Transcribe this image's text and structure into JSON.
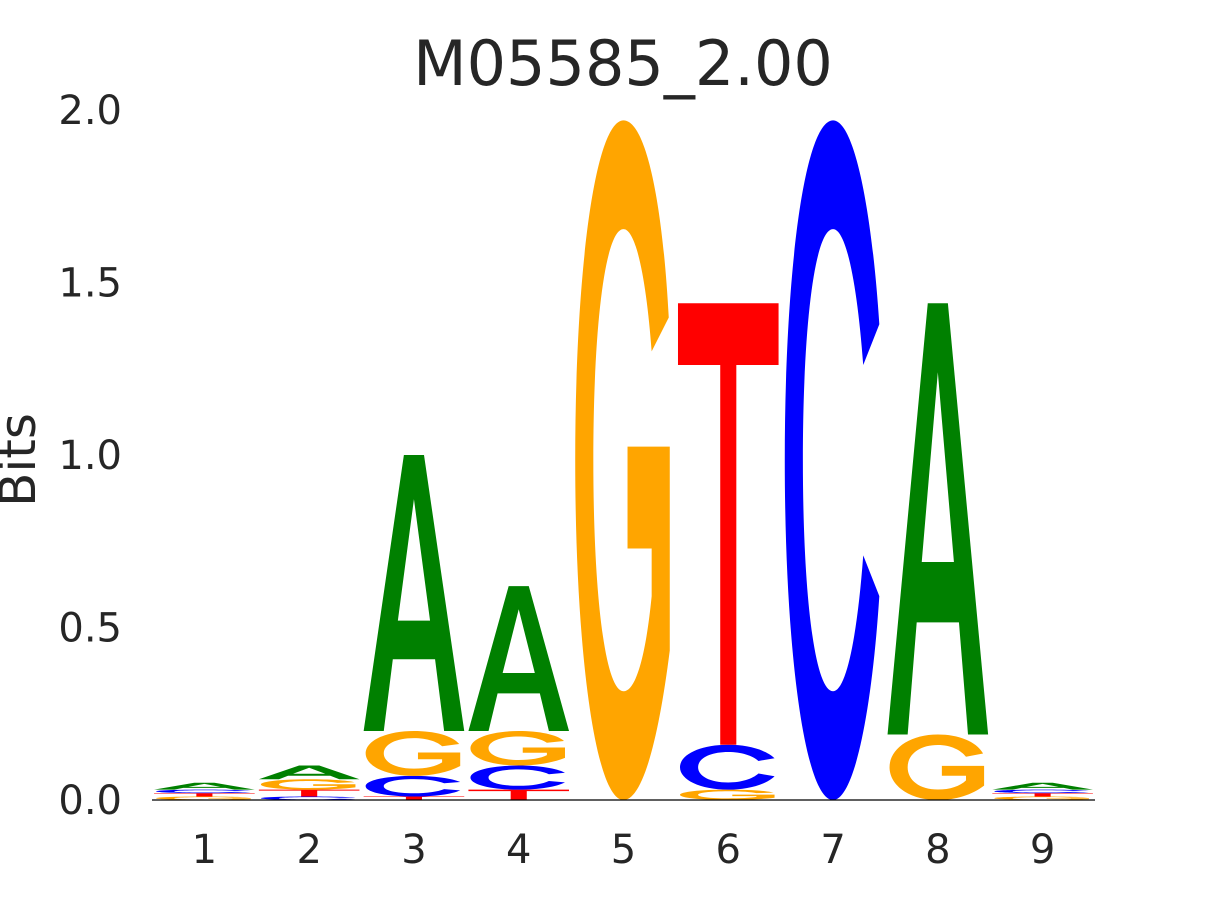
{
  "chart_data": {
    "type": "sequence-logo",
    "title": "M05585_2.00",
    "ylabel": "Bits",
    "xlabel": "",
    "ylim": [
      0,
      2
    ],
    "yticks": [
      "0.0",
      "0.5",
      "1.0",
      "1.5",
      "2.0"
    ],
    "xticks": [
      "1",
      "2",
      "3",
      "4",
      "5",
      "6",
      "7",
      "8",
      "9"
    ],
    "colors": {
      "A": "#008000",
      "C": "#0000ff",
      "G": "#ffa500",
      "T": "#ff0000"
    },
    "positions": [
      {
        "pos": 1,
        "letters": [
          {
            "base": "G",
            "bits": 0.01
          },
          {
            "base": "T",
            "bits": 0.01
          },
          {
            "base": "C",
            "bits": 0.01
          },
          {
            "base": "A",
            "bits": 0.02
          }
        ]
      },
      {
        "pos": 2,
        "letters": [
          {
            "base": "C",
            "bits": 0.01
          },
          {
            "base": "T",
            "bits": 0.02
          },
          {
            "base": "G",
            "bits": 0.03
          },
          {
            "base": "A",
            "bits": 0.04
          }
        ]
      },
      {
        "pos": 3,
        "letters": [
          {
            "base": "T",
            "bits": 0.01
          },
          {
            "base": "C",
            "bits": 0.06
          },
          {
            "base": "G",
            "bits": 0.13
          },
          {
            "base": "A",
            "bits": 0.8
          }
        ]
      },
      {
        "pos": 4,
        "letters": [
          {
            "base": "T",
            "bits": 0.03
          },
          {
            "base": "C",
            "bits": 0.07
          },
          {
            "base": "G",
            "bits": 0.1
          },
          {
            "base": "A",
            "bits": 0.42
          }
        ]
      },
      {
        "pos": 5,
        "letters": [
          {
            "base": "G",
            "bits": 1.97
          }
        ]
      },
      {
        "pos": 6,
        "letters": [
          {
            "base": "G",
            "bits": 0.03
          },
          {
            "base": "C",
            "bits": 0.13
          },
          {
            "base": "T",
            "bits": 1.28
          }
        ]
      },
      {
        "pos": 7,
        "letters": [
          {
            "base": "C",
            "bits": 1.97
          }
        ]
      },
      {
        "pos": 8,
        "letters": [
          {
            "base": "G",
            "bits": 0.19
          },
          {
            "base": "A",
            "bits": 1.25
          }
        ]
      },
      {
        "pos": 9,
        "letters": [
          {
            "base": "G",
            "bits": 0.01
          },
          {
            "base": "T",
            "bits": 0.01
          },
          {
            "base": "C",
            "bits": 0.01
          },
          {
            "base": "A",
            "bits": 0.02
          }
        ]
      }
    ]
  }
}
